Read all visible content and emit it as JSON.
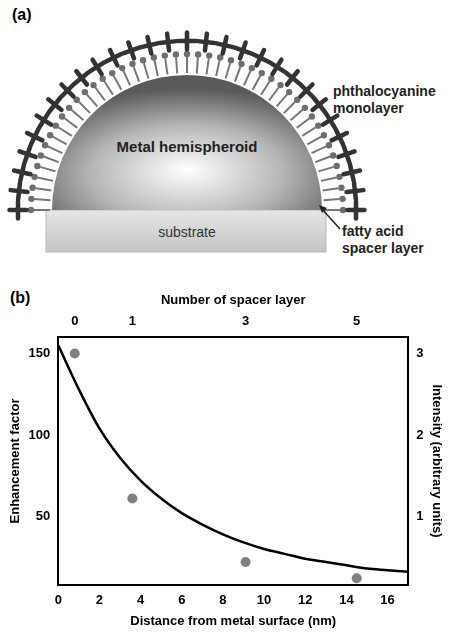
{
  "panel_a": {
    "label": "(a)",
    "texts": {
      "metal": "Metal hemispheroid",
      "substrate": "substrate",
      "monolayer": "phthalocyanine monolayer",
      "spacer": "fatty acid spacer layer"
    }
  },
  "chart_data": {
    "type": "scatter",
    "panel_label": "(b)",
    "xlabel": "Distance from metal surface (nm)",
    "x2label": "Number of spacer layer",
    "ylabel": "Enhancement factor",
    "y2label": "Intensity (arbitrary units)",
    "xlim": [
      0,
      17
    ],
    "xticks": [
      0,
      2,
      4,
      6,
      8,
      10,
      12,
      14,
      16
    ],
    "x2lim": [
      0,
      17
    ],
    "x2ticks": [
      {
        "value": 0.8,
        "label": "0"
      },
      {
        "value": 3.6,
        "label": "1"
      },
      {
        "value": 9.1,
        "label": "3"
      },
      {
        "value": 14.5,
        "label": "5"
      }
    ],
    "ylim": [
      8,
      160
    ],
    "yticks": [
      50,
      100,
      150
    ],
    "y2lim": [
      0.16,
      3.2
    ],
    "y2ticks": [
      1,
      2,
      3
    ],
    "grid": false,
    "series": [
      {
        "type": "scatter",
        "marker": "circle",
        "color": "#808080",
        "x": [
          0.8,
          3.6,
          9.1,
          14.5
        ],
        "values": [
          150,
          61,
          22,
          12
        ]
      },
      {
        "type": "line",
        "marker": "none",
        "line_style": "solid",
        "color": "#000000",
        "x": [
          0,
          1,
          2,
          3,
          4,
          5,
          6,
          7,
          8,
          9,
          10,
          11,
          12,
          13,
          14,
          15,
          16,
          17
        ],
        "values": [
          155,
          128,
          104,
          86,
          72,
          61,
          52,
          45,
          39,
          34,
          30,
          27,
          24,
          22,
          20,
          18,
          17,
          16
        ]
      }
    ]
  }
}
